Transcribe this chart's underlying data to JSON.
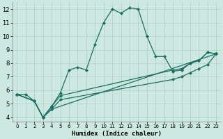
{
  "xlabel": "Humidex (Indice chaleur)",
  "background_color": "#cce8e0",
  "grid_color": "#aacfc8",
  "line_color": "#1a6e62",
  "xlim": [
    -0.5,
    23.5
  ],
  "ylim": [
    3.7,
    12.5
  ],
  "xticks": [
    0,
    1,
    2,
    3,
    4,
    5,
    6,
    7,
    8,
    9,
    10,
    11,
    12,
    13,
    14,
    15,
    16,
    17,
    18,
    19,
    20,
    21,
    22,
    23
  ],
  "yticks": [
    4,
    5,
    6,
    7,
    8,
    9,
    10,
    11,
    12
  ],
  "series1_x": [
    0,
    1,
    2,
    3,
    4,
    5,
    6,
    7,
    8,
    9,
    10,
    11,
    12,
    13,
    14,
    15,
    16,
    17,
    18,
    19,
    20,
    21,
    22,
    23
  ],
  "series1_y": [
    5.7,
    5.7,
    5.2,
    4.0,
    4.8,
    5.8,
    7.5,
    7.7,
    7.5,
    9.4,
    11.0,
    12.0,
    11.7,
    12.1,
    12.0,
    10.0,
    8.5,
    8.5,
    7.4,
    7.5,
    8.0,
    8.2,
    8.8,
    8.7
  ],
  "series2_x": [
    0,
    2,
    3,
    4,
    5,
    18,
    19,
    20,
    21,
    22,
    23
  ],
  "series2_y": [
    5.7,
    5.2,
    4.0,
    4.8,
    5.6,
    7.5,
    7.6,
    8.0,
    8.2,
    8.8,
    8.7
  ],
  "series3_x": [
    0,
    2,
    3,
    4,
    5,
    18,
    19,
    20,
    21,
    22,
    23
  ],
  "series3_y": [
    5.7,
    5.2,
    4.0,
    4.6,
    5.3,
    6.8,
    7.0,
    7.3,
    7.6,
    7.9,
    8.7
  ],
  "series4_x": [
    0,
    2,
    3,
    4,
    23
  ],
  "series4_y": [
    5.7,
    5.2,
    4.0,
    4.6,
    8.7
  ]
}
